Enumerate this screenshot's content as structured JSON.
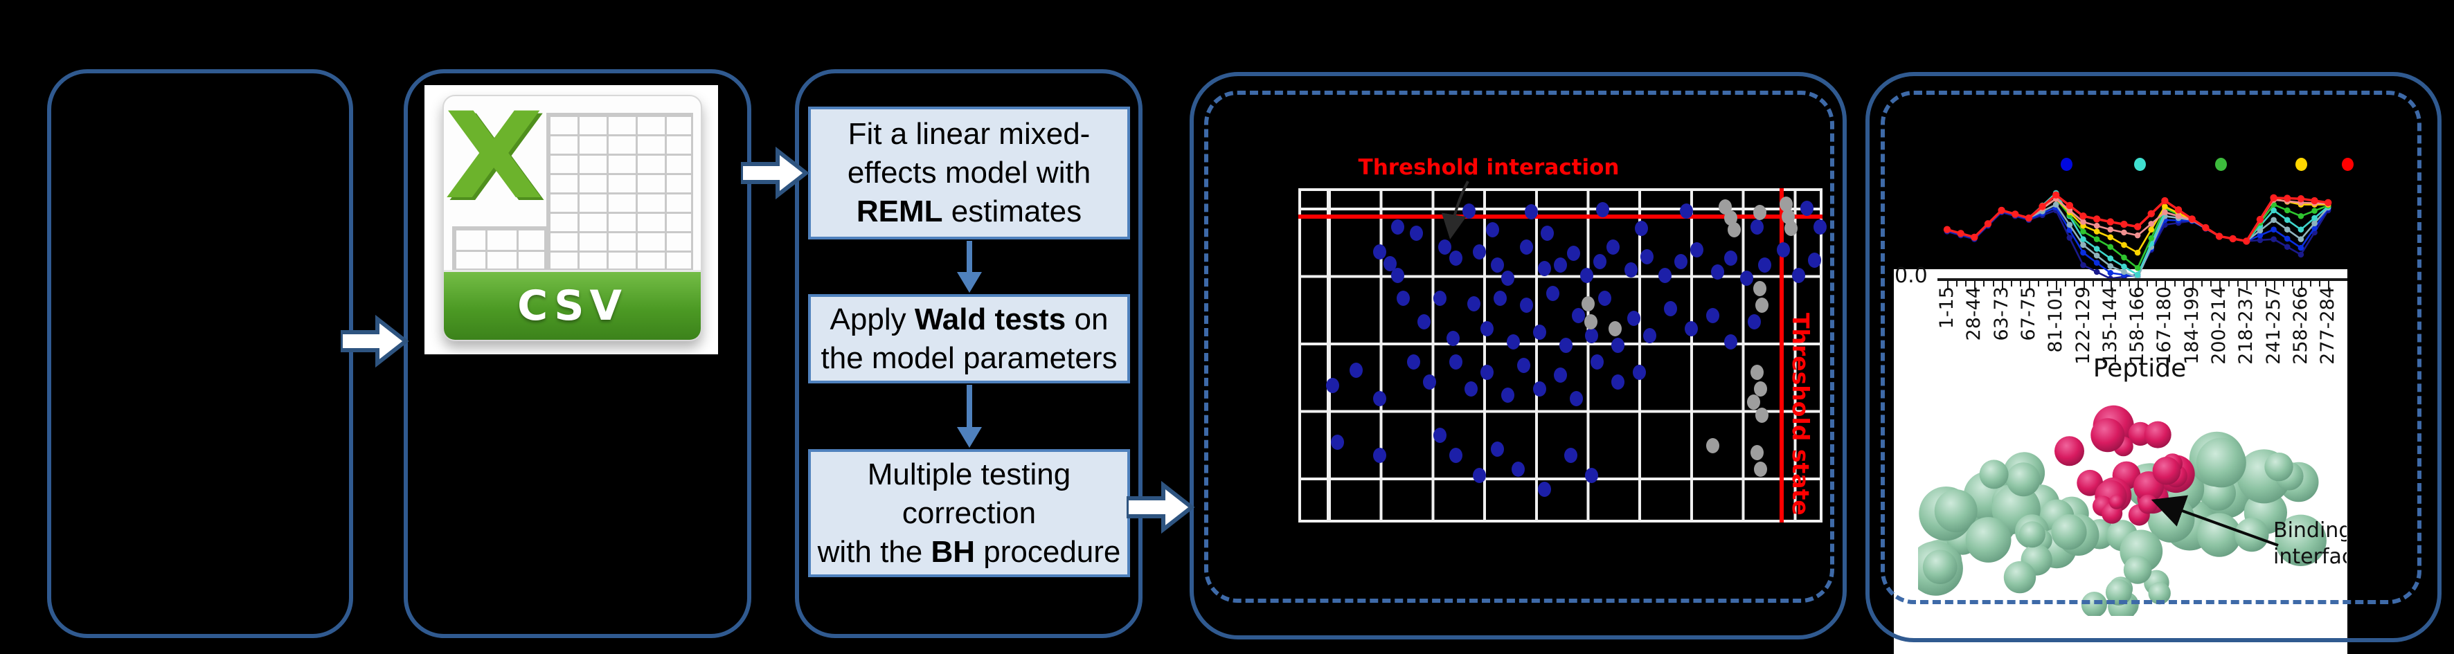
{
  "colors": {
    "background": "#000000",
    "panel_border": "#305a90",
    "dashed_border": "#3e6aa8",
    "step_fill": "#dce6f2",
    "step_border": "#4f81bd",
    "flow_arrow_blue": "#4f81bd",
    "block_arrow_fill": "#ffffff",
    "block_arrow_stroke": "#2e5480",
    "threshold_red": "#ff0000",
    "csv_green": "#6cb32c",
    "protein_green": "#8ec4a4",
    "protein_crimson": "#d81b60"
  },
  "csv_icon": {
    "x_letter": "X",
    "label": "CSV"
  },
  "flow": {
    "steps": [
      {
        "lines": [
          [
            {
              "t": "Fit a linear mixed-"
            }
          ],
          [
            {
              "t": "effects model with"
            }
          ],
          [
            {
              "t": "REML",
              "b": true
            },
            {
              "t": " estimates"
            }
          ]
        ]
      },
      {
        "lines": [
          [
            {
              "t": "Apply "
            },
            {
              "t": "Wald tests",
              "b": true
            },
            {
              "t": " on"
            }
          ],
          [
            {
              "t": "the model parameters"
            }
          ]
        ]
      },
      {
        "lines": [
          [
            {
              "t": "Multiple testing"
            }
          ],
          [
            {
              "t": "correction"
            }
          ],
          [
            {
              "t": "with the "
            },
            {
              "t": "BH",
              "b": true
            },
            {
              "t": " procedure"
            }
          ]
        ]
      }
    ]
  },
  "protein": {
    "label_lines": [
      "Binding",
      "interface"
    ]
  },
  "chart_data": [
    {
      "type": "scatter",
      "title": "Threshold interaction",
      "x_threshold_label": "Threshold state",
      "threshold_y_frac": 0.085,
      "threshold_x_frac": 0.922,
      "grid": true,
      "series": [
        {
          "name": "blue-points",
          "color": "#1c1fa8",
          "points": [
            [
              0.19,
              0.115
            ],
            [
              0.225,
              0.135
            ],
            [
              0.325,
              0.068
            ],
            [
              0.37,
              0.125
            ],
            [
              0.445,
              0.07
            ],
            [
              0.475,
              0.135
            ],
            [
              0.58,
              0.065
            ],
            [
              0.655,
              0.12
            ],
            [
              0.74,
              0.068
            ],
            [
              0.875,
              0.115
            ],
            [
              0.97,
              0.06
            ],
            [
              0.995,
              0.115
            ],
            [
              0.155,
              0.19
            ],
            [
              0.175,
              0.225
            ],
            [
              0.19,
              0.26
            ],
            [
              0.28,
              0.175
            ],
            [
              0.3,
              0.21
            ],
            [
              0.345,
              0.19
            ],
            [
              0.38,
              0.23
            ],
            [
              0.4,
              0.27
            ],
            [
              0.435,
              0.175
            ],
            [
              0.47,
              0.24
            ],
            [
              0.5,
              0.23
            ],
            [
              0.525,
              0.195
            ],
            [
              0.55,
              0.26
            ],
            [
              0.575,
              0.22
            ],
            [
              0.6,
              0.175
            ],
            [
              0.635,
              0.245
            ],
            [
              0.665,
              0.205
            ],
            [
              0.7,
              0.26
            ],
            [
              0.73,
              0.22
            ],
            [
              0.76,
              0.185
            ],
            [
              0.8,
              0.25
            ],
            [
              0.825,
              0.21
            ],
            [
              0.855,
              0.27
            ],
            [
              0.89,
              0.23
            ],
            [
              0.925,
              0.185
            ],
            [
              0.955,
              0.26
            ],
            [
              0.985,
              0.215
            ],
            [
              0.2,
              0.33
            ],
            [
              0.24,
              0.4
            ],
            [
              0.27,
              0.33
            ],
            [
              0.295,
              0.45
            ],
            [
              0.335,
              0.345
            ],
            [
              0.36,
              0.42
            ],
            [
              0.385,
              0.33
            ],
            [
              0.41,
              0.46
            ],
            [
              0.435,
              0.35
            ],
            [
              0.46,
              0.43
            ],
            [
              0.485,
              0.315
            ],
            [
              0.51,
              0.47
            ],
            [
              0.535,
              0.38
            ],
            [
              0.56,
              0.44
            ],
            [
              0.585,
              0.33
            ],
            [
              0.61,
              0.47
            ],
            [
              0.64,
              0.39
            ],
            [
              0.67,
              0.44
            ],
            [
              0.71,
              0.36
            ],
            [
              0.75,
              0.42
            ],
            [
              0.79,
              0.38
            ],
            [
              0.825,
              0.46
            ],
            [
              0.87,
              0.4
            ],
            [
              0.065,
              0.59
            ],
            [
              0.11,
              0.545
            ],
            [
              0.155,
              0.63
            ],
            [
              0.22,
              0.52
            ],
            [
              0.25,
              0.58
            ],
            [
              0.3,
              0.52
            ],
            [
              0.33,
              0.6
            ],
            [
              0.36,
              0.55
            ],
            [
              0.4,
              0.62
            ],
            [
              0.43,
              0.53
            ],
            [
              0.46,
              0.6
            ],
            [
              0.5,
              0.56
            ],
            [
              0.53,
              0.63
            ],
            [
              0.57,
              0.52
            ],
            [
              0.61,
              0.58
            ],
            [
              0.65,
              0.55
            ],
            [
              0.075,
              0.76
            ],
            [
              0.155,
              0.8
            ],
            [
              0.27,
              0.74
            ],
            [
              0.3,
              0.8
            ],
            [
              0.345,
              0.86
            ],
            [
              0.38,
              0.78
            ],
            [
              0.42,
              0.84
            ],
            [
              0.47,
              0.9
            ],
            [
              0.52,
              0.8
            ],
            [
              0.56,
              0.86
            ]
          ]
        },
        {
          "name": "gray-points",
          "color": "#9e9e9e",
          "points": [
            [
              0.815,
              0.055
            ],
            [
              0.825,
              0.09
            ],
            [
              0.832,
              0.125
            ],
            [
              0.88,
              0.072
            ],
            [
              0.93,
              0.048
            ],
            [
              0.935,
              0.085
            ],
            [
              0.94,
              0.12
            ],
            [
              0.88,
              0.3
            ],
            [
              0.885,
              0.35
            ],
            [
              0.875,
              0.55
            ],
            [
              0.882,
              0.6
            ],
            [
              0.868,
              0.64
            ],
            [
              0.885,
              0.68
            ],
            [
              0.79,
              0.77
            ],
            [
              0.875,
              0.79
            ],
            [
              0.882,
              0.84
            ],
            [
              0.553,
              0.345
            ],
            [
              0.558,
              0.4
            ],
            [
              0.605,
              0.42
            ]
          ]
        }
      ]
    },
    {
      "type": "line",
      "xlabel": "Peptide",
      "y_tick_labels": [
        "0.0"
      ],
      "categories": [
        "1-15",
        "28-44",
        "63-73",
        "67-75",
        "81-101",
        "122-129",
        "135-144",
        "158-166",
        "167-180",
        "184-199",
        "200-214",
        "218-237",
        "241-257",
        "258-266",
        "277-284"
      ],
      "legend_dots": [
        "#0008e0",
        "#40e0d0",
        "#3dbb3d",
        "#ffd700",
        "#ff0000"
      ],
      "series": [
        {
          "name": "navy",
          "color": "#1a1a8c",
          "values": [
            0.5,
            0.42,
            0.7,
            0.62,
            0.72,
            0.15,
            0.01,
            0.05,
            0.57,
            0.61,
            0.45,
            0.4,
            0.42,
            0.26,
            0.72
          ]
        },
        {
          "name": "blue",
          "color": "#0a2fe0",
          "values": [
            0.51,
            0.43,
            0.71,
            0.63,
            0.75,
            0.28,
            0.07,
            0.03,
            0.62,
            0.61,
            0.45,
            0.4,
            0.52,
            0.33,
            0.74
          ]
        },
        {
          "name": "steel",
          "color": "#8fb4be",
          "values": [
            0.52,
            0.44,
            0.72,
            0.64,
            0.78,
            0.36,
            0.14,
            0.02,
            0.66,
            0.62,
            0.45,
            0.4,
            0.62,
            0.42,
            0.75
          ]
        },
        {
          "name": "cyan",
          "color": "#3fd6cd",
          "values": [
            0.52,
            0.44,
            0.72,
            0.64,
            0.9,
            0.42,
            0.22,
            0.05,
            0.7,
            0.62,
            0.45,
            0.4,
            0.72,
            0.52,
            0.76
          ]
        },
        {
          "name": "green",
          "color": "#2fc52f",
          "values": [
            0.52,
            0.44,
            0.72,
            0.64,
            0.84,
            0.5,
            0.34,
            0.12,
            0.74,
            0.62,
            0.45,
            0.4,
            0.78,
            0.66,
            0.77
          ]
        },
        {
          "name": "yellow",
          "color": "#ffd400",
          "values": [
            0.52,
            0.44,
            0.72,
            0.64,
            0.84,
            0.56,
            0.44,
            0.28,
            0.76,
            0.62,
            0.45,
            0.4,
            0.84,
            0.78,
            0.78
          ]
        },
        {
          "name": "salmon",
          "color": "#f29191",
          "values": [
            0.52,
            0.44,
            0.72,
            0.64,
            0.84,
            0.6,
            0.52,
            0.46,
            0.7,
            0.62,
            0.45,
            0.4,
            0.83,
            0.8,
            0.79
          ]
        },
        {
          "name": "red",
          "color": "#ff1f1f",
          "values": [
            0.52,
            0.44,
            0.72,
            0.64,
            0.88,
            0.66,
            0.6,
            0.55,
            0.82,
            0.63,
            0.45,
            0.4,
            0.85,
            0.84,
            0.8
          ]
        }
      ]
    }
  ]
}
